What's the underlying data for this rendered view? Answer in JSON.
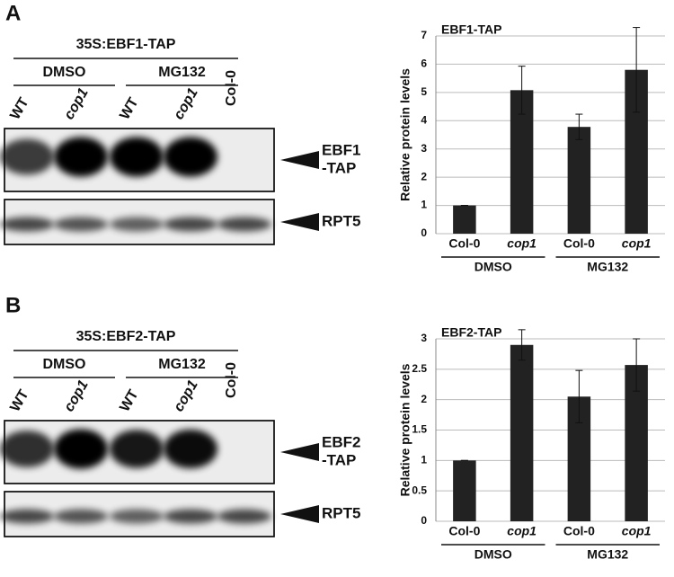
{
  "panels": [
    {
      "letter": "A",
      "construct": "35S:EBF1-TAP",
      "treatments": [
        "DMSO",
        "MG132"
      ],
      "lanes": [
        "WT",
        "cop1",
        "WT",
        "cop1",
        "Col-0"
      ],
      "blot_labels": [
        [
          "EBF1",
          "-TAP"
        ],
        [
          "RPT5"
        ]
      ]
    },
    {
      "letter": "B",
      "construct": "35S:EBF2-TAP",
      "treatments": [
        "DMSO",
        "MG132"
      ],
      "lanes": [
        "WT",
        "cop1",
        "WT",
        "cop1",
        "Col-0"
      ],
      "blot_labels": [
        [
          "EBF2",
          "-TAP"
        ],
        [
          "RPT5"
        ]
      ]
    }
  ],
  "chart_data": [
    {
      "type": "bar",
      "title": "EBF1-TAP",
      "y_label": "Relative protein levels",
      "categories": [
        "Col-0",
        "cop1",
        "Col-0",
        "cop1"
      ],
      "groups": [
        "DMSO",
        "MG132"
      ],
      "values": [
        1,
        5.08,
        3.78,
        5.8
      ],
      "errors": [
        0,
        0.85,
        0.45,
        1.5
      ],
      "color": "#222222",
      "ylim": [
        0,
        7
      ],
      "yticks": [
        0,
        1,
        2,
        3,
        4,
        5,
        6,
        7
      ],
      "grid": true
    },
    {
      "type": "bar",
      "title": "EBF2-TAP",
      "y_label": "Relative protein levels",
      "categories": [
        "Col-0",
        "cop1",
        "Col-0",
        "cop1"
      ],
      "groups": [
        "DMSO",
        "MG132"
      ],
      "values": [
        1,
        2.9,
        2.05,
        2.57
      ],
      "errors": [
        0,
        0.25,
        0.43,
        0.43
      ],
      "color": "#222222",
      "ylim": [
        0,
        3
      ],
      "yticks": [
        0,
        0.5,
        1,
        1.5,
        2,
        2.5,
        3
      ],
      "grid": true
    }
  ]
}
